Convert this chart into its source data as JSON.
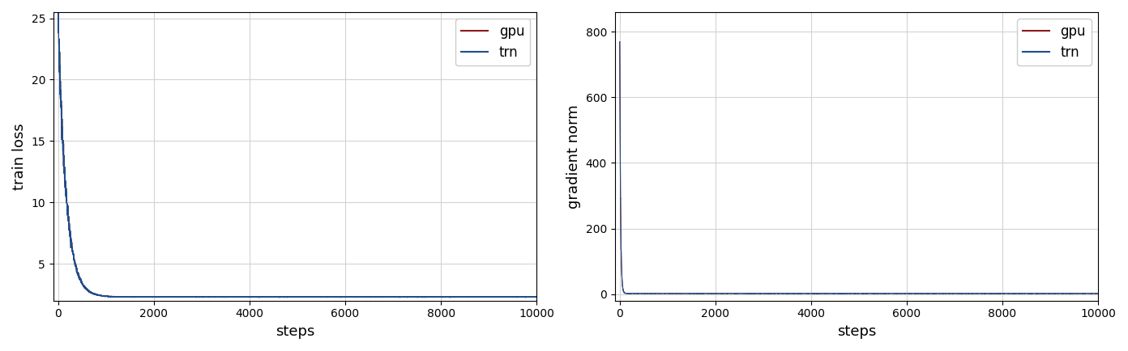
{
  "xlabel": "steps",
  "ylabel_left": "train loss",
  "ylabel_right": "gradient norm",
  "x_max": 10000,
  "xlim_left": [
    -100,
    10000
  ],
  "xlim_right": [
    -100,
    10000
  ],
  "x_ticks": [
    0,
    2000,
    4000,
    6000,
    8000,
    10000
  ],
  "ylim_left": [
    2.0,
    25.5
  ],
  "ylim_right": [
    -20,
    860
  ],
  "yticks_left": [
    5,
    10,
    15,
    20,
    25
  ],
  "yticks_right": [
    0,
    200,
    400,
    600,
    800
  ],
  "gpu_color": "#8b1a1a",
  "trn_color": "#1f4e8c",
  "legend_labels": [
    "gpu",
    "trn"
  ],
  "figsize": [
    13.92,
    4.34
  ],
  "dpi": 100,
  "n_steps": 10000,
  "loss_start": 24.8,
  "loss_end": 2.3,
  "loss_decay": 0.006,
  "grad_start": 840.0,
  "grad_end": 2.0,
  "grad_decay": 0.06
}
